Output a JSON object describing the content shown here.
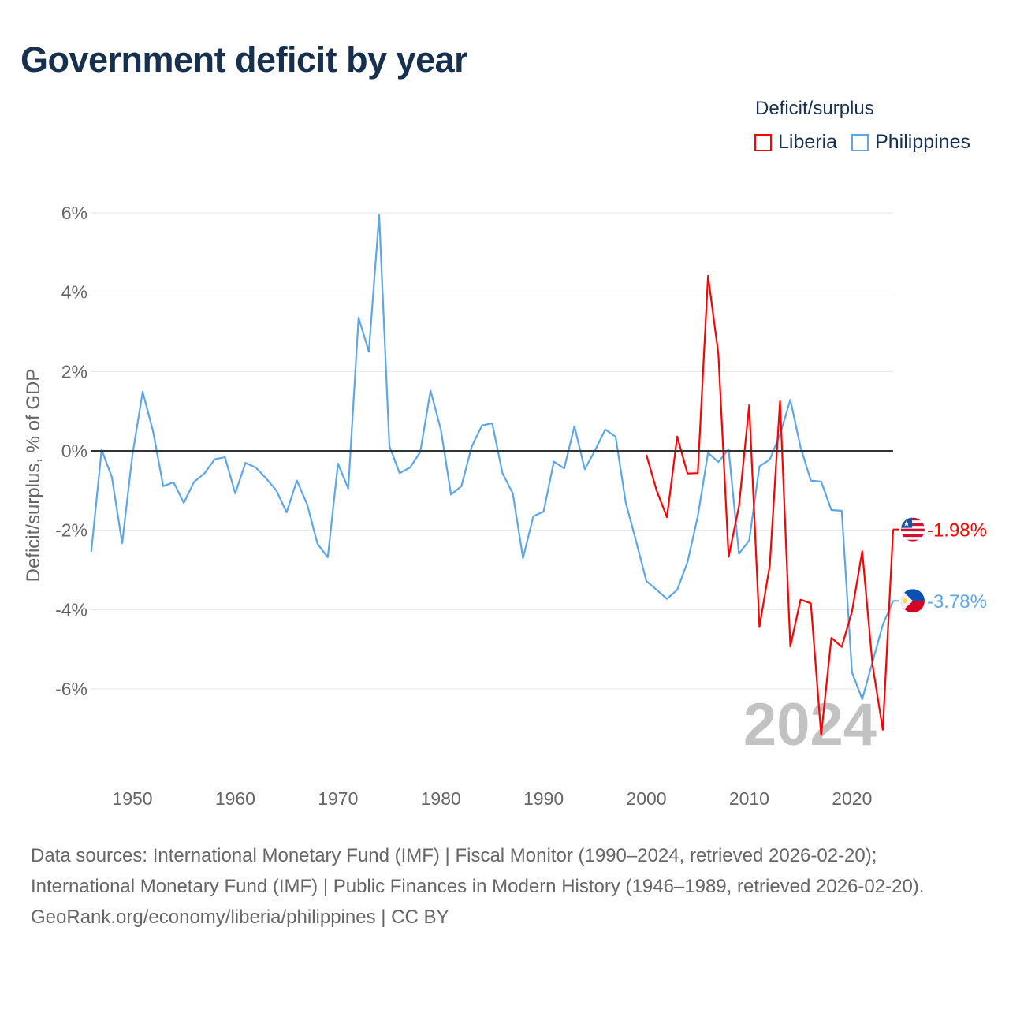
{
  "title": "Government deficit by year",
  "legend": {
    "title": "Deficit/surplus",
    "items": [
      {
        "label": "Liberia",
        "color": "#ff0000"
      },
      {
        "label": "Philippines",
        "color": "#5ea6ea"
      }
    ]
  },
  "footer": {
    "sources": "Data sources: International Monetary Fund (IMF) | Fiscal Monitor (1990–2024, retrieved 2026-02-20); International Monetary Fund (IMF) | Public Finances in Modern History (1946–1989, retrieved 2026-02-20).",
    "credit": "GeoRank.org/economy/liberia/philippines | CC BY"
  },
  "chart_data": {
    "type": "line",
    "title": "Government deficit by year",
    "xlabel": "",
    "ylabel": "Deficit/surplus, % of GDP",
    "xlim": [
      1946,
      2024
    ],
    "ylim": [
      -8.2,
      6.2
    ],
    "x_ticks": [
      1950,
      1960,
      1970,
      1980,
      1990,
      2000,
      2010,
      2020
    ],
    "x_tick_labels": [
      "1950",
      "1960",
      "1970",
      "1980",
      "1990",
      "2000",
      "2010",
      "2020"
    ],
    "y_ticks": [
      6,
      4,
      2,
      0,
      -2,
      -4,
      -6
    ],
    "y_tick_labels": [
      "6%",
      "4%",
      "2%",
      "0%",
      "-2%",
      "-4%",
      "-6%"
    ],
    "grid": true,
    "legend_position": "top-right",
    "year_watermark": "2024",
    "series": [
      {
        "name": "Liberia",
        "color": "#ff0000",
        "end_label": "-1.98%",
        "x": [
          2000,
          2001,
          2002,
          2003,
          2004,
          2005,
          2006,
          2007,
          2008,
          2009,
          2010,
          2011,
          2012,
          2013,
          2014,
          2015,
          2016,
          2017,
          2018,
          2019,
          2020,
          2021,
          2022,
          2023,
          2024
        ],
        "values": [
          -0.1,
          -1.0,
          -1.67,
          0.36,
          -0.57,
          -0.56,
          4.41,
          2.45,
          -2.67,
          -1.4,
          1.15,
          -4.44,
          -2.89,
          1.25,
          -4.93,
          -3.75,
          -3.84,
          -7.16,
          -4.71,
          -4.94,
          -4.05,
          -2.53,
          -5.4,
          -7.03,
          -1.98
        ]
      },
      {
        "name": "Philippines",
        "color": "#5ea6ea",
        "end_label": "-3.78%",
        "x": [
          1946,
          1947,
          1948,
          1949,
          1950,
          1951,
          1952,
          1953,
          1954,
          1955,
          1956,
          1957,
          1958,
          1959,
          1960,
          1961,
          1962,
          1963,
          1964,
          1965,
          1966,
          1967,
          1968,
          1969,
          1970,
          1971,
          1972,
          1973,
          1974,
          1975,
          1976,
          1977,
          1978,
          1979,
          1980,
          1981,
          1982,
          1983,
          1984,
          1985,
          1986,
          1987,
          1988,
          1989,
          1990,
          1991,
          1992,
          1993,
          1994,
          1995,
          1996,
          1997,
          1998,
          1999,
          2000,
          2001,
          2002,
          2003,
          2004,
          2005,
          2006,
          2007,
          2008,
          2009,
          2010,
          2011,
          2012,
          2013,
          2014,
          2015,
          2016,
          2017,
          2018,
          2019,
          2020,
          2021,
          2022,
          2023,
          2024
        ],
        "values": [
          -2.54,
          0.03,
          -0.66,
          -2.33,
          -0.1,
          1.49,
          0.5,
          -0.89,
          -0.79,
          -1.31,
          -0.78,
          -0.57,
          -0.21,
          -0.16,
          -1.07,
          -0.3,
          -0.42,
          -0.69,
          -1.0,
          -1.55,
          -0.75,
          -1.35,
          -2.34,
          -2.68,
          -0.32,
          -0.95,
          3.36,
          2.5,
          5.94,
          0.12,
          -0.56,
          -0.42,
          -0.03,
          1.52,
          0.54,
          -1.1,
          -0.89,
          0.1,
          0.64,
          0.7,
          -0.56,
          -1.07,
          -2.7,
          -1.65,
          -1.53,
          -0.27,
          -0.44,
          0.62,
          -0.46,
          0.01,
          0.54,
          0.36,
          -1.31,
          -2.28,
          -3.28,
          -3.5,
          -3.73,
          -3.5,
          -2.8,
          -1.65,
          -0.05,
          -0.28,
          0.04,
          -2.59,
          -2.26,
          -0.39,
          -0.22,
          0.41,
          1.29,
          0.09,
          -0.75,
          -0.77,
          -1.49,
          -1.51,
          -5.58,
          -6.26,
          -5.32,
          -4.38,
          -3.78
        ]
      }
    ]
  }
}
